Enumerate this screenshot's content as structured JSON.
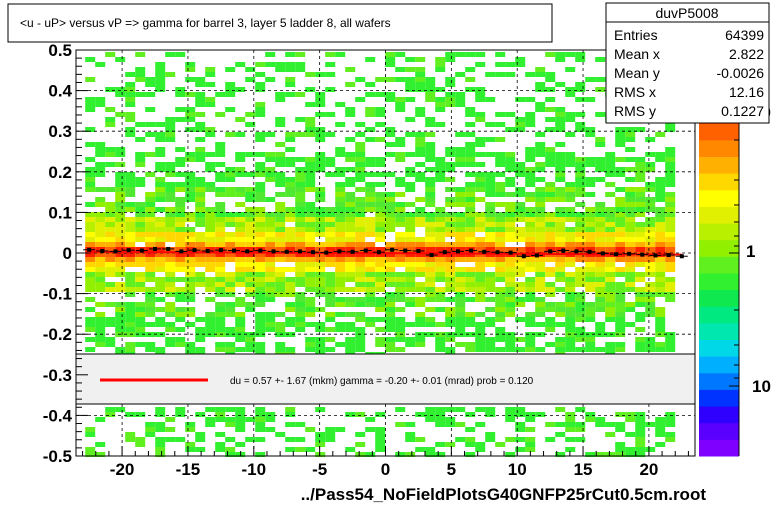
{
  "chart_data": {
    "type": "heatmap",
    "title": "<u - uP>       versus   vP =>  gamma for barrel 3, layer 5 ladder 8, all wafers",
    "xlabel": "",
    "ylabel": "",
    "xlim": [
      -23.5,
      23.5
    ],
    "ylim": [
      -0.5,
      0.5
    ],
    "x_ticks": [
      -20,
      -15,
      -10,
      -5,
      0,
      5,
      10,
      15,
      20
    ],
    "y_ticks": [
      -0.5,
      -0.4,
      -0.3,
      -0.2,
      -0.1,
      0,
      0.1,
      0.2,
      0.3,
      0.4,
      0.5
    ],
    "grid": true,
    "colorbar": {
      "scale": "log",
      "tick_labels": [
        "1",
        "10"
      ],
      "partial_label": "10",
      "colors": [
        "#7f00ff",
        "#5a00ff",
        "#3000ff",
        "#0033ff",
        "#0077ff",
        "#00b0ff",
        "#00d8e8",
        "#00e8b0",
        "#00e880",
        "#10e850",
        "#30f030",
        "#60f020",
        "#90f000",
        "#b8f000",
        "#e0f000",
        "#ffff00",
        "#ffd800",
        "#ffb000",
        "#ff8800",
        "#ff6000",
        "#ff3000",
        "#ff0000"
      ]
    },
    "stats": {
      "name": "duvP5008",
      "rows": [
        {
          "label": "Entries",
          "value": "64399"
        },
        {
          "label": "Mean x",
          "value": "2.822"
        },
        {
          "label": "Mean y",
          "value": "-0.0026"
        },
        {
          "label": "RMS x",
          "value": "12.16"
        },
        {
          "label": "RMS y",
          "value": "0.1227"
        }
      ]
    },
    "fit": {
      "text": "du =    0.57 +-  1.67 (mkm) gamma =   -0.20 +-  0.01 (mrad) prob = 0.120",
      "line_color": "#ff0000"
    },
    "profile": {
      "x": [
        -22.5,
        -21.5,
        -20.5,
        -19.5,
        -18.5,
        -17.5,
        -16.5,
        -15.5,
        -14.5,
        -13.5,
        -12.5,
        -11.5,
        -10.5,
        -9.5,
        -8.5,
        -7.5,
        -6.5,
        -5.5,
        -4.5,
        -3.5,
        -2.5,
        -1.5,
        -0.5,
        0.5,
        1.5,
        2.5,
        3.5,
        4.5,
        5.5,
        6.5,
        7.5,
        8.5,
        9.5,
        10.5,
        11.5,
        12.5,
        13.5,
        14.5,
        15.5,
        16.5,
        17.5,
        18.5,
        19.5,
        20.5,
        21.5,
        22.5
      ],
      "y": [
        0.008,
        0.005,
        0.004,
        0.007,
        0.006,
        0.01,
        0.01,
        0.004,
        0.007,
        0.005,
        0.007,
        0.006,
        0.004,
        0.006,
        0.004,
        0.003,
        0.004,
        0.002,
        0.001,
        0.004,
        0.003,
        0.006,
        0.002,
        0.008,
        0.006,
        0.005,
        -0.005,
        0.002,
        0.004,
        0.006,
        0.003,
        0.002,
        0.001,
        -0.008,
        -0.006,
        0.004,
        0.006,
        0.004,
        0.003,
        -0.001,
        -0.003,
        -0.002,
        -0.004,
        -0.006,
        -0.005,
        -0.008
      ]
    },
    "footer": "../Pass54_NoFieldPlotsG40GNFP25rCut0.5cm.root"
  }
}
